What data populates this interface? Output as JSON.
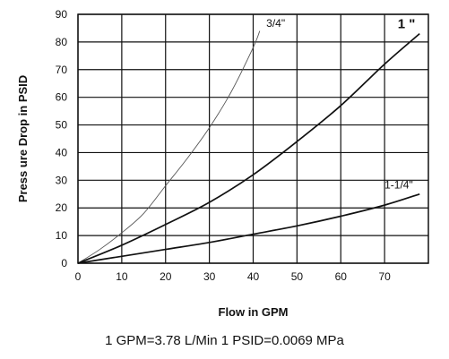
{
  "footnote": "1 GPM=3.78 L/Min 1 PSID=0.0069 MPa",
  "chart_data": {
    "type": "line",
    "xlabel": "Flow in GPM",
    "ylabel": "Press ure Drop in PSID",
    "xlim": [
      0,
      80
    ],
    "ylim": [
      0,
      90
    ],
    "xticks": [
      0,
      10,
      20,
      30,
      40,
      50,
      60,
      70
    ],
    "yticks": [
      0,
      10,
      20,
      30,
      40,
      50,
      60,
      70,
      80,
      90
    ],
    "grid": true,
    "series": [
      {
        "name": "3/4\"",
        "line": "thin",
        "color": "#555555",
        "x": [
          0,
          5,
          10,
          15,
          20,
          25,
          30,
          35,
          40,
          41.5
        ],
        "y": [
          0,
          5,
          11,
          18,
          28,
          38,
          49,
          62,
          78,
          84
        ]
      },
      {
        "name": "1 \"",
        "line": "thick",
        "color": "#111111",
        "x": [
          0,
          10,
          20,
          30,
          40,
          50,
          60,
          70,
          78
        ],
        "y": [
          0,
          6.5,
          14,
          22,
          32,
          44,
          57,
          72,
          83
        ]
      },
      {
        "name": "1-1/4\"",
        "line": "thick",
        "color": "#111111",
        "x": [
          0,
          10,
          20,
          30,
          40,
          50,
          60,
          70,
          78
        ],
        "y": [
          0,
          2.5,
          5,
          7.5,
          10.5,
          13.5,
          17,
          21,
          25
        ]
      }
    ]
  }
}
